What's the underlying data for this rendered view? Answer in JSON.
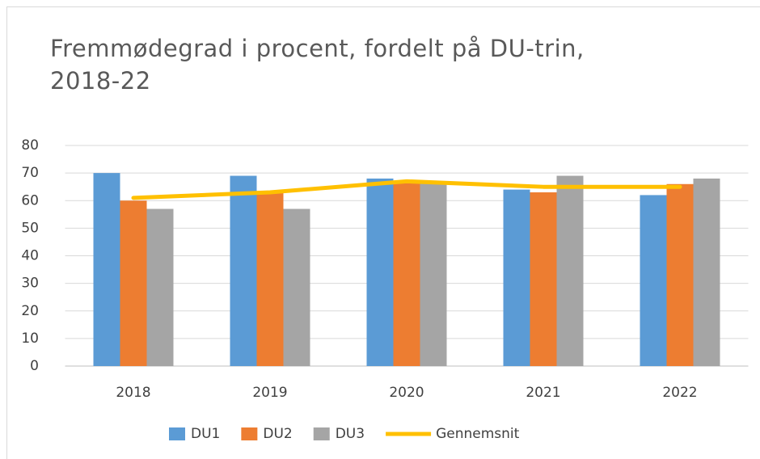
{
  "chart_data": {
    "type": "bar",
    "title": "Fremmødegrad i procent, fordelt på DU-trin, 2018-22",
    "categories": [
      "2018",
      "2019",
      "2020",
      "2021",
      "2022"
    ],
    "series": [
      {
        "name": "DU1",
        "color": "#5b9bd5",
        "values": [
          70,
          69,
          68,
          64,
          62
        ]
      },
      {
        "name": "DU2",
        "color": "#ed7d31",
        "values": [
          60,
          63,
          67,
          63,
          66
        ]
      },
      {
        "name": "DU3",
        "color": "#a5a5a5",
        "values": [
          57,
          57,
          67,
          69,
          68
        ]
      },
      {
        "name": "Gennemsnit",
        "type": "line",
        "color": "#ffc000",
        "values": [
          61,
          63,
          67,
          65,
          65
        ]
      }
    ],
    "ylim": [
      0,
      80
    ],
    "yticks": [
      0,
      10,
      20,
      30,
      40,
      50,
      60,
      70,
      80
    ],
    "grid": true,
    "legend": "bottom"
  }
}
